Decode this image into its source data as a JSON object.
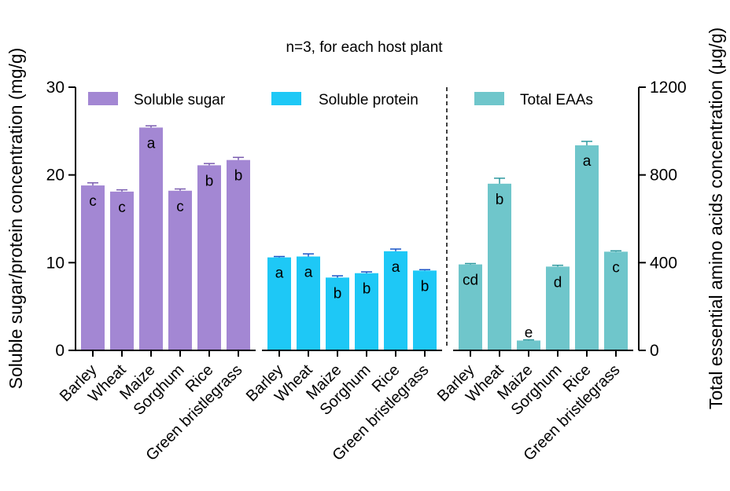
{
  "chart_data": {
    "type": "bar",
    "title": "n=3, for each host plant",
    "ylabel_left": "Soluble sugar/protein concentration (mg/g)",
    "ylabel_right": "Total essential amino acids concentration (μg/g)",
    "ylim_left": [
      0,
      30
    ],
    "yticks_left": [
      "0",
      "10",
      "20",
      "30"
    ],
    "ylim_right": [
      0,
      1200
    ],
    "yticks_right": [
      "0",
      "400",
      "800",
      "1200"
    ],
    "grid": false,
    "legend_position": "top",
    "series": [
      {
        "name": "Soluble sugar",
        "axis": "left",
        "color": "#a387d3",
        "errcolor": "#7a5cb0",
        "categories": [
          "Barley",
          "Wheat",
          "Maize",
          "Sorghum",
          "Rice",
          "Green bristlegrass"
        ],
        "values": [
          18.8,
          18.1,
          25.4,
          18.2,
          21.1,
          21.7
        ],
        "errors": [
          0.3,
          0.2,
          0.2,
          0.2,
          0.2,
          0.3
        ],
        "letters": [
          "c",
          "c",
          "a",
          "c",
          "b",
          "b"
        ]
      },
      {
        "name": "Soluble protein",
        "axis": "left",
        "color": "#1ec8f6",
        "errcolor": "#1a55c8",
        "categories": [
          "Barley",
          "Wheat",
          "Maize",
          "Sorghum",
          "Rice",
          "Green bristlegrass"
        ],
        "values": [
          10.6,
          10.7,
          8.3,
          8.8,
          11.3,
          9.1
        ],
        "errors": [
          0.1,
          0.3,
          0.2,
          0.15,
          0.25,
          0.1
        ],
        "letters": [
          "a",
          "a",
          "b",
          "b",
          "a",
          "b"
        ]
      },
      {
        "name": "Total EAAs",
        "axis": "right",
        "color": "#6fc6cb",
        "errcolor": "#2f9aa0",
        "categories": [
          "Barley",
          "Wheat",
          "Maize",
          "Sorghum",
          "Rice",
          "Green bristlegrass"
        ],
        "values": [
          392,
          760,
          45,
          382,
          935,
          450
        ],
        "errors": [
          4,
          25,
          3,
          6,
          18,
          4
        ],
        "letters": [
          "cd",
          "b",
          "e",
          "d",
          "a",
          "c"
        ]
      }
    ]
  }
}
